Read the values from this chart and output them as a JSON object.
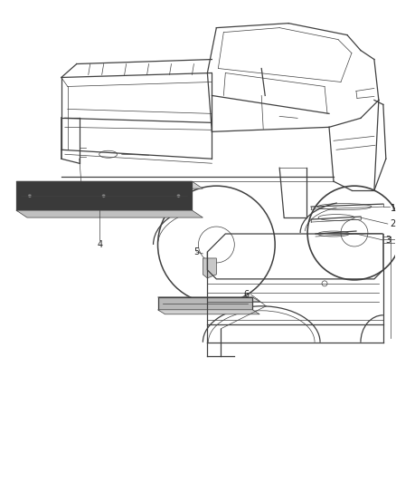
{
  "bg_color": "#ffffff",
  "fig_width": 4.38,
  "fig_height": 5.33,
  "dpi": 100,
  "line_color": "#404040",
  "text_color": "#222222",
  "lw_main": 0.9,
  "lw_thin": 0.5,
  "lw_thick": 1.3
}
